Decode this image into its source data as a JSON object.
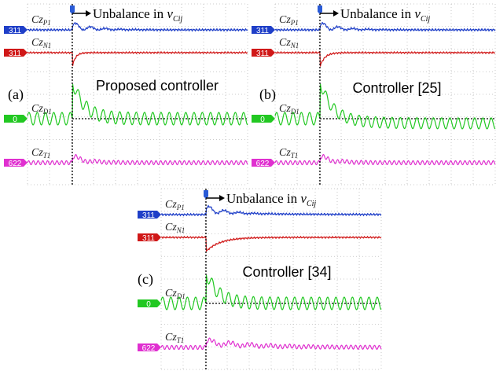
{
  "panels": [
    {
      "label": "(a)",
      "title": "Proposed controller",
      "annotation": {
        "text": "Unbalance in ",
        "variable": "v",
        "subscript": "Cij"
      },
      "channels": [
        {
          "symbol": "Cz",
          "subscript": "P1",
          "marker": "311",
          "color": "#1f3fc8"
        },
        {
          "symbol": "Cz",
          "subscript": "N1",
          "marker": "311",
          "color": "#d01818"
        },
        {
          "symbol": "Cz",
          "subscript": "D1",
          "marker": "0",
          "color": "#22c822"
        },
        {
          "symbol": "Cz",
          "subscript": "T1",
          "marker": "622",
          "color": "#e030d0"
        }
      ]
    },
    {
      "label": "(b)",
      "title": "Controller [25]",
      "annotation": {
        "text": "Unbalance in ",
        "variable": "v",
        "subscript": "Cij"
      },
      "channels": [
        {
          "symbol": "Cz",
          "subscript": "P1",
          "marker": "311",
          "color": "#1f3fc8"
        },
        {
          "symbol": "Cz",
          "subscript": "N1",
          "marker": "311",
          "color": "#d01818"
        },
        {
          "symbol": "Cz",
          "subscript": "D1",
          "marker": "0",
          "color": "#22c822"
        },
        {
          "symbol": "Cz",
          "subscript": "T1",
          "marker": "622",
          "color": "#e030d0"
        }
      ]
    },
    {
      "label": "(c)",
      "title": "Controller [34]",
      "annotation": {
        "text": "Unbalance in ",
        "variable": "v",
        "subscript": "Cij"
      },
      "channels": [
        {
          "symbol": "Cz",
          "subscript": "P1",
          "marker": "311",
          "color": "#1f3fc8"
        },
        {
          "symbol": "Cz",
          "subscript": "N1",
          "marker": "311",
          "color": "#d01818"
        },
        {
          "symbol": "Cz",
          "subscript": "D1",
          "marker": "0",
          "color": "#22c822"
        },
        {
          "symbol": "Cz",
          "subscript": "T1",
          "marker": "622",
          "color": "#e030d0"
        }
      ]
    }
  ]
}
